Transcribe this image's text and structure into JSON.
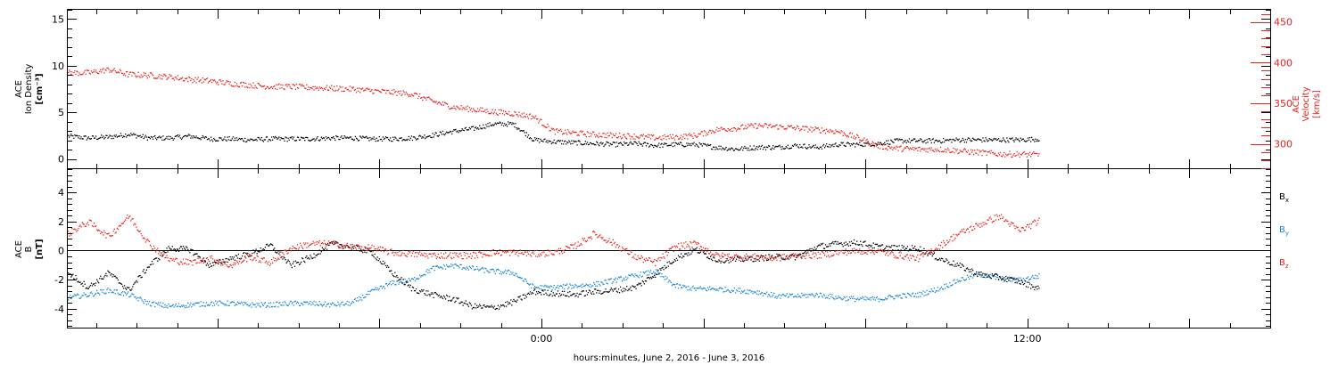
{
  "chart_data": [
    {
      "type": "scatter",
      "panel": "top",
      "left_axis": {
        "title_lines": [
          "ACE",
          "Ion Density",
          "[cm⁻³]"
        ],
        "ylim": [
          -1,
          16
        ],
        "ticks": [
          0,
          5,
          10,
          15
        ]
      },
      "right_axis": {
        "title_lines": [
          "ACE",
          "Velocity",
          "[km/s]"
        ],
        "ylim": [
          270,
          465
        ],
        "ticks": [
          300,
          350,
          400,
          450
        ],
        "color": "#e8231f"
      },
      "series": [
        {
          "name": "",
          "axis": "left",
          "color": "#000000",
          "x": [
            -11.7,
            -11.2,
            -10.7,
            -10.2,
            -9.7,
            -9.2,
            -8.7,
            -8.2,
            -7.7,
            -7.2,
            -6.7,
            -6.2,
            -5.7,
            -5.2,
            -4.7,
            -4.2,
            -3.7,
            -3.2,
            -2.7,
            -2.2,
            -1.7,
            -1.2,
            -0.7,
            -0.2,
            0.3,
            0.8,
            1.3,
            1.8,
            2.3,
            2.8,
            3.3,
            3.8,
            4.3,
            4.8,
            5.3,
            5.8,
            6.3,
            6.8,
            7.3,
            7.8,
            8.3,
            8.8,
            9.3,
            9.8,
            10.3,
            10.8,
            11.3,
            11.8,
            12.3
          ],
          "y": [
            2.5,
            2.3,
            2.4,
            2.7,
            2.3,
            2.3,
            2.5,
            2.2,
            2.2,
            2.1,
            2.2,
            2.2,
            2.2,
            2.3,
            2.3,
            2.2,
            2.2,
            2.3,
            2.6,
            3.0,
            3.3,
            3.8,
            3.8,
            2.1,
            1.9,
            1.8,
            1.7,
            1.6,
            1.7,
            1.5,
            1.6,
            1.6,
            1.3,
            1.1,
            1.3,
            1.3,
            1.5,
            1.3,
            1.6,
            1.6,
            1.7,
            2.0,
            2.0,
            2.0,
            2.1,
            2.1,
            2.1,
            2.1,
            2.2
          ]
        },
        {
          "name": "",
          "axis": "right",
          "color": "#e8231f",
          "x": [
            -11.7,
            -11.2,
            -10.7,
            -10.2,
            -9.7,
            -9.2,
            -8.7,
            -8.2,
            -7.7,
            -7.2,
            -6.7,
            -6.2,
            -5.7,
            -5.2,
            -4.7,
            -4.2,
            -3.7,
            -3.2,
            -2.7,
            -2.2,
            -1.7,
            -1.2,
            -0.7,
            -0.2,
            0.3,
            0.8,
            1.3,
            1.8,
            2.3,
            2.8,
            3.3,
            3.8,
            4.3,
            4.8,
            5.3,
            5.8,
            6.3,
            6.8,
            7.3,
            7.8,
            8.3,
            8.8,
            9.3,
            9.8,
            10.3,
            10.8,
            11.3,
            11.8,
            12.3
          ],
          "y": [
            388,
            388,
            392,
            386,
            385,
            383,
            380,
            378,
            375,
            373,
            371,
            371,
            370,
            369,
            368,
            366,
            364,
            362,
            353,
            346,
            343,
            340,
            338,
            334,
            316,
            314,
            312,
            311,
            310,
            308,
            309,
            311,
            318,
            320,
            323,
            322,
            320,
            318,
            316,
            308,
            298,
            295,
            294,
            294,
            292,
            290,
            288,
            288,
            287
          ]
        }
      ]
    },
    {
      "type": "scatter",
      "panel": "bottom",
      "left_axis": {
        "title_lines": [
          "ACE",
          "B",
          "[nT]"
        ],
        "ylim": [
          -5.3,
          5.6
        ],
        "ticks": [
          -4,
          -2,
          0,
          2,
          4
        ]
      },
      "legend": {
        "placement": "right",
        "entries": [
          {
            "label": "B",
            "sub": "x",
            "color": "#000000"
          },
          {
            "label": "B",
            "sub": "y",
            "color": "#1b86d4"
          },
          {
            "label": "B",
            "sub": "z",
            "color": "#e8231f"
          }
        ]
      },
      "series": [
        {
          "name": "Bx",
          "color": "#000000",
          "x": [
            -11.7,
            -11.2,
            -10.7,
            -10.2,
            -9.7,
            -9.2,
            -8.7,
            -8.2,
            -7.7,
            -7.2,
            -6.7,
            -6.2,
            -5.7,
            -5.2,
            -4.7,
            -4.2,
            -3.7,
            -3.2,
            -2.7,
            -2.2,
            -1.7,
            -1.2,
            -0.7,
            -0.2,
            0.3,
            0.8,
            1.3,
            1.8,
            2.3,
            2.8,
            3.3,
            3.8,
            4.3,
            4.8,
            5.3,
            5.8,
            6.3,
            6.8,
            7.3,
            7.8,
            8.3,
            8.8,
            9.3,
            9.8,
            10.3,
            10.8,
            11.3,
            11.8,
            12.3
          ],
          "y": [
            -1.5,
            -2.5,
            -1.5,
            -2.7,
            -1.0,
            0.2,
            0.1,
            -1.0,
            -0.5,
            -0.2,
            0.4,
            -1.0,
            -0.4,
            0.5,
            0.3,
            -0.1,
            -1.5,
            -2.6,
            -3.0,
            -3.3,
            -3.8,
            -3.9,
            -3.5,
            -2.8,
            -2.9,
            -3.0,
            -2.8,
            -2.7,
            -2.5,
            -1.6,
            -0.5,
            0.1,
            -0.6,
            -0.6,
            -0.5,
            -0.4,
            -0.4,
            0.3,
            0.5,
            0.6,
            0.3,
            0.2,
            0.2,
            -0.5,
            -1.0,
            -1.6,
            -1.8,
            -2.1,
            -2.6
          ]
        },
        {
          "name": "By",
          "color": "#1b86d4",
          "x": [
            -11.7,
            -11.2,
            -10.7,
            -10.2,
            -9.7,
            -9.2,
            -8.7,
            -8.2,
            -7.7,
            -7.2,
            -6.7,
            -6.2,
            -5.7,
            -5.2,
            -4.7,
            -4.2,
            -3.7,
            -3.2,
            -2.7,
            -2.2,
            -1.7,
            -1.2,
            -0.7,
            -0.2,
            0.3,
            0.8,
            1.3,
            1.8,
            2.3,
            2.8,
            3.3,
            3.8,
            4.3,
            4.8,
            5.3,
            5.8,
            6.3,
            6.8,
            7.3,
            7.8,
            8.3,
            8.8,
            9.3,
            9.8,
            10.3,
            10.8,
            11.3,
            11.8,
            12.3
          ],
          "y": [
            -3.2,
            -3.0,
            -2.7,
            -3.0,
            -3.6,
            -3.8,
            -3.7,
            -3.6,
            -3.6,
            -3.7,
            -3.7,
            -3.6,
            -3.6,
            -3.7,
            -3.6,
            -2.8,
            -2.2,
            -2.0,
            -1.2,
            -1.0,
            -1.2,
            -1.4,
            -1.5,
            -2.5,
            -2.5,
            -2.4,
            -2.3,
            -2.0,
            -1.7,
            -1.4,
            -2.4,
            -2.6,
            -2.6,
            -2.7,
            -2.8,
            -3.1,
            -3.1,
            -3.0,
            -3.2,
            -3.3,
            -3.3,
            -3.1,
            -3.0,
            -2.6,
            -2.0,
            -1.6,
            -1.9,
            -2.0,
            -1.7
          ]
        },
        {
          "name": "Bz",
          "color": "#e8231f",
          "x": [
            -11.7,
            -11.2,
            -10.7,
            -10.2,
            -9.7,
            -9.2,
            -8.7,
            -8.2,
            -7.7,
            -7.2,
            -6.7,
            -6.2,
            -5.7,
            -5.2,
            -4.7,
            -4.2,
            -3.7,
            -3.2,
            -2.7,
            -2.2,
            -1.7,
            -1.2,
            -0.7,
            -0.2,
            0.3,
            0.8,
            1.3,
            1.8,
            2.3,
            2.8,
            3.3,
            3.8,
            4.3,
            4.8,
            5.3,
            5.8,
            6.3,
            6.8,
            7.3,
            7.8,
            8.3,
            8.8,
            9.3,
            9.8,
            10.3,
            10.8,
            11.3,
            11.8,
            12.3
          ],
          "y": [
            1.2,
            2.0,
            1.0,
            2.4,
            0.5,
            -0.6,
            -0.8,
            -0.5,
            -1.0,
            -0.4,
            -0.8,
            0.2,
            0.5,
            0.5,
            0.3,
            0.2,
            -0.1,
            -0.2,
            -0.3,
            -0.3,
            -0.3,
            -0.1,
            -0.1,
            -0.2,
            -0.1,
            0.3,
            1.2,
            0.5,
            -0.4,
            -0.8,
            0.3,
            0.5,
            -0.3,
            -0.4,
            -0.4,
            -0.5,
            -0.3,
            -0.3,
            -0.1,
            0.0,
            0.0,
            -0.3,
            -0.5,
            0.3,
            1.2,
            1.8,
            2.4,
            1.4,
            2.1
          ]
        }
      ]
    }
  ],
  "x_axis": {
    "unit": "hours",
    "xlim": [
      -11.7,
      18.0
    ],
    "tick_labels": [
      {
        "value": 0,
        "label": "0:00"
      },
      {
        "value": 12,
        "label": "12:00"
      }
    ],
    "title": "hours:minutes, June  2, 2016 - June  3, 2016"
  }
}
